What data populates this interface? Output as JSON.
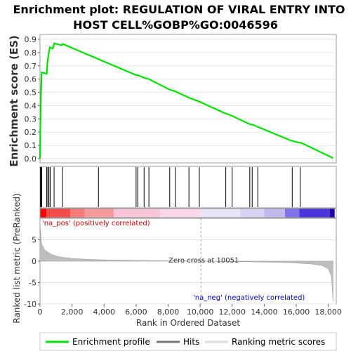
{
  "chart_data": {
    "type": "line",
    "title_line1": "Enrichment plot: REGULATION OF VIRAL ENTRY INTO",
    "title_line2": "HOST CELL%GOBP%GO:0046596",
    "es_panel": {
      "ylabel": "Enrichment score (ES)",
      "ylim": [
        0,
        0.9
      ],
      "yticks": [
        "0.0",
        "0.1",
        "0.2",
        "0.3",
        "0.4",
        "0.5",
        "0.6",
        "0.7",
        "0.8",
        "0.9"
      ],
      "series": [
        {
          "name": "Enrichment profile",
          "color": "#00e000",
          "points": [
            [
              0,
              0.0
            ],
            [
              20,
              0.26
            ],
            [
              60,
              0.48
            ],
            [
              100,
              0.65
            ],
            [
              420,
              0.64
            ],
            [
              460,
              0.72
            ],
            [
              520,
              0.78
            ],
            [
              620,
              0.84
            ],
            [
              800,
              0.83
            ],
            [
              900,
              0.87
            ],
            [
              1350,
              0.855
            ],
            [
              1420,
              0.865
            ],
            [
              3650,
              0.75
            ],
            [
              6000,
              0.63
            ],
            [
              6100,
              0.63
            ],
            [
              6500,
              0.61
            ],
            [
              6800,
              0.6
            ],
            [
              8100,
              0.52
            ],
            [
              8400,
              0.51
            ],
            [
              9300,
              0.46
            ],
            [
              9950,
              0.43
            ],
            [
              11500,
              0.345
            ],
            [
              11950,
              0.325
            ],
            [
              13100,
              0.26
            ],
            [
              13300,
              0.255
            ],
            [
              13600,
              0.24
            ],
            [
              15700,
              0.135
            ],
            [
              16200,
              0.12
            ],
            [
              16300,
              0.12
            ],
            [
              18300,
              0.005
            ]
          ]
        }
      ]
    },
    "hits": [
      30,
      70,
      110,
      420,
      490,
      560,
      640,
      880,
      1400,
      3650,
      6000,
      6100,
      6500,
      6800,
      8100,
      8450,
      9300,
      9950,
      11600,
      12000,
      13100,
      13250,
      13600,
      15750,
      16250
    ],
    "metric_panel": {
      "ylabel": "Ranked list metric (PreRanked)",
      "ylim": [
        -10,
        10
      ],
      "yticks": [
        "5",
        "0",
        "-5",
        "-10"
      ],
      "pos_label": "'na_pos' (positively correlated)",
      "neg_label": "'na_neg' (negatively correlated)",
      "zero_cross_label": "Zero cross at 10051",
      "zero_cross": 10051
    },
    "xlabel": "Rank in Ordered Dataset",
    "xlim": [
      0,
      18500
    ],
    "xticks": [
      "0",
      "2,000",
      "4,000",
      "6,000",
      "8,000",
      "10,000",
      "12,000",
      "14,000",
      "16,000",
      "18,000"
    ],
    "legend": {
      "placement": "bottom",
      "items": [
        "Enrichment profile",
        "Hits",
        "Ranking metric scores"
      ]
    }
  }
}
